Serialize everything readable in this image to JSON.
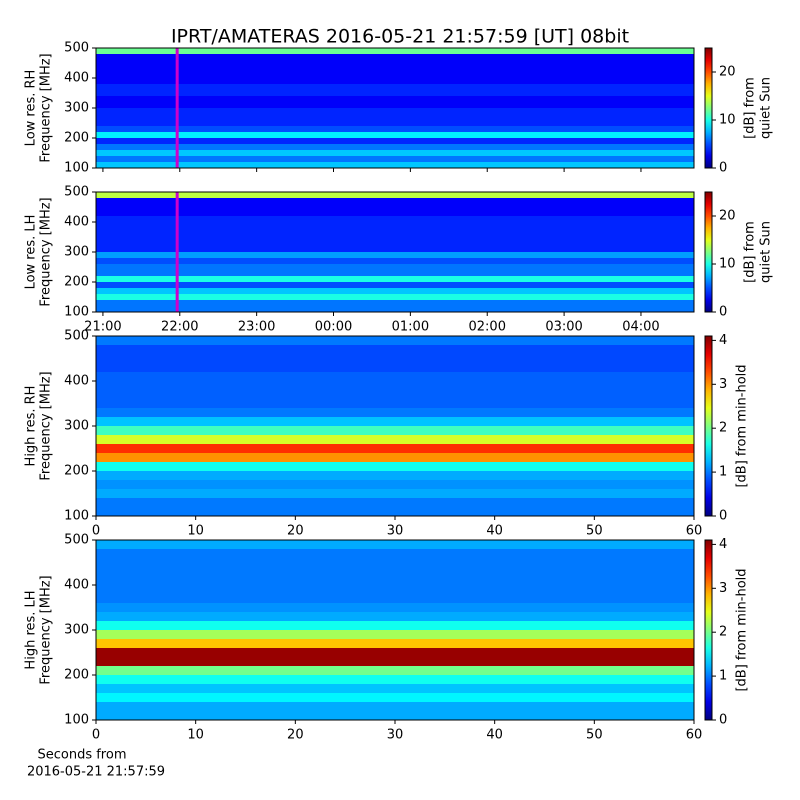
{
  "chart_data": [
    {
      "type": "heatmap",
      "title": "IPRT/AMATERAS 2016-05-21 21:57:59 [UT]   08bit",
      "ylabel": [
        "Low res. RH",
        "Frequency [MHz]"
      ],
      "xlim": [
        20.91,
        28.69
      ],
      "ylim": [
        100,
        500
      ],
      "yticks": [
        100,
        200,
        300,
        400,
        500
      ],
      "freq_bins": [
        100,
        120,
        140,
        160,
        180,
        200,
        220,
        240,
        260,
        280,
        300,
        320,
        340,
        360,
        380,
        400,
        420,
        440,
        460,
        480,
        500
      ],
      "values": [
        8,
        6,
        8,
        6,
        4,
        9,
        5,
        4,
        4,
        4,
        3,
        3,
        4,
        4,
        3,
        3,
        3,
        3,
        3,
        12
      ],
      "colormap": "jet",
      "clim": [
        0,
        25
      ],
      "cticks": [
        0,
        10,
        20
      ],
      "colorbar_label": [
        "[dB] from",
        "quiet Sun"
      ],
      "marker_x": 21.966,
      "marker_color": "#cc00cc"
    },
    {
      "type": "heatmap",
      "ylabel": [
        "Low res. LH",
        "Frequency [MHz]"
      ],
      "xlim": [
        20.91,
        28.69
      ],
      "xticks": [
        {
          "value": 21,
          "label": "21:00"
        },
        {
          "value": 22,
          "label": "22:00"
        },
        {
          "value": 23,
          "label": "23:00"
        },
        {
          "value": 24,
          "label": "00:00"
        },
        {
          "value": 25,
          "label": "01:00"
        },
        {
          "value": 26,
          "label": "02:00"
        },
        {
          "value": 27,
          "label": "03:00"
        },
        {
          "value": 28,
          "label": "04:00"
        }
      ],
      "ylim": [
        100,
        500
      ],
      "yticks": [
        100,
        200,
        300,
        400,
        500
      ],
      "freq_bins": [
        100,
        120,
        140,
        160,
        180,
        200,
        220,
        240,
        260,
        280,
        300,
        320,
        340,
        360,
        380,
        400,
        420,
        440,
        460,
        480,
        500
      ],
      "values": [
        6,
        6,
        10,
        8,
        5,
        10,
        6,
        6,
        5,
        7,
        4,
        4,
        4,
        4,
        4,
        4,
        3,
        3,
        3,
        14
      ],
      "colormap": "jet",
      "clim": [
        0,
        25
      ],
      "cticks": [
        0,
        10,
        20
      ],
      "colorbar_label": [
        "[dB] from",
        "quiet Sun"
      ],
      "marker_x": 21.966,
      "marker_color": "#cc00cc"
    },
    {
      "type": "heatmap",
      "ylabel": [
        "High res. RH",
        "Frequency [MHz]"
      ],
      "xlim": [
        0,
        60
      ],
      "xticks": [
        0,
        10,
        20,
        30,
        40,
        50,
        60
      ],
      "ylim": [
        100,
        500
      ],
      "yticks": [
        100,
        200,
        300,
        400,
        500
      ],
      "freq_bins": [
        100,
        120,
        140,
        160,
        180,
        200,
        220,
        240,
        260,
        280,
        300,
        320,
        340,
        360,
        380,
        400,
        420,
        440,
        460,
        480,
        500
      ],
      "values": [
        1,
        1,
        1.2,
        1.1,
        1.2,
        1.6,
        3,
        3.4,
        2.4,
        1.8,
        1.3,
        1,
        0.9,
        0.9,
        0.9,
        0.9,
        0.8,
        0.8,
        0.8,
        1
      ],
      "colormap": "jet",
      "clim": [
        0,
        4.1
      ],
      "cticks": [
        0,
        1,
        2,
        3,
        4
      ],
      "colorbar_label": [
        "[dB] from min-hold"
      ]
    },
    {
      "type": "heatmap",
      "ylabel": [
        "High res. LH",
        "Frequency [MHz]"
      ],
      "xlim": [
        0,
        60
      ],
      "xticks": [
        0,
        10,
        20,
        30,
        40,
        50,
        60
      ],
      "ylim": [
        100,
        500
      ],
      "yticks": [
        100,
        200,
        300,
        400,
        500
      ],
      "freq_bins": [
        100,
        120,
        140,
        160,
        180,
        200,
        220,
        240,
        260,
        280,
        300,
        320,
        340,
        360,
        380,
        400,
        420,
        440,
        460,
        480,
        500
      ],
      "values": [
        1.2,
        1.2,
        1.5,
        1.3,
        1.6,
        2,
        4,
        4,
        2.8,
        2.2,
        1.6,
        1.2,
        1.1,
        1,
        1,
        1,
        1,
        1,
        1,
        1.2
      ],
      "colormap": "jet",
      "clim": [
        0,
        4.1
      ],
      "cticks": [
        0,
        1,
        2,
        3,
        4
      ],
      "colorbar_label": [
        "[dB] from min-hold"
      ],
      "xlabel": [
        "Seconds from",
        "2016-05-21 21:57:59"
      ]
    }
  ]
}
